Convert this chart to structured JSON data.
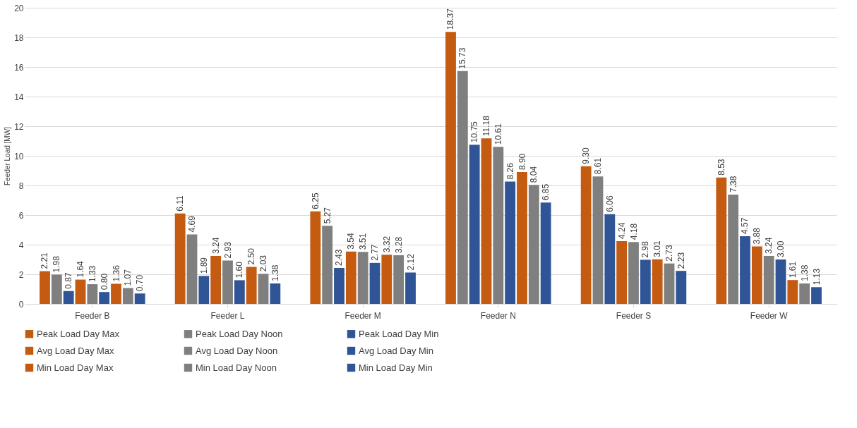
{
  "chart_data": {
    "type": "bar",
    "ylabel": "Feeder Load [MW]",
    "categories": [
      "Feeder B",
      "Feeder L",
      "Feeder M",
      "Feeder N",
      "Feeder S",
      "Feeder W"
    ],
    "series": [
      {
        "name": "Peak Load Day Max",
        "color": "#c55a11",
        "values": [
          2.21,
          6.11,
          6.25,
          18.37,
          9.3,
          8.53
        ],
        "value_labels": [
          "2.21",
          "6.11",
          "6.25",
          "18.37",
          "9.30",
          "8.53"
        ]
      },
      {
        "name": "Peak Load Day Noon",
        "color": "#7f7f7f",
        "values": [
          1.98,
          4.69,
          5.27,
          15.73,
          8.61,
          7.38
        ],
        "value_labels": [
          "1.98",
          "4.69",
          "5.27",
          "15.73",
          "8.61",
          "7.38"
        ]
      },
      {
        "name": "Peak Load Day Min",
        "color": "#2f5597",
        "values": [
          0.87,
          1.89,
          2.43,
          10.75,
          6.06,
          4.57
        ],
        "value_labels": [
          "0.87",
          "1.89",
          "2.43",
          "10.75",
          "6.06",
          "4.57"
        ]
      },
      {
        "name": "Avg Load Day Max",
        "color": "#c55a11",
        "values": [
          1.64,
          3.24,
          3.54,
          11.18,
          4.24,
          3.88
        ],
        "value_labels": [
          "1.64",
          "3.24",
          "3.54",
          "11.18",
          "4.24",
          "3.88"
        ]
      },
      {
        "name": "Avg Load Day Noon",
        "color": "#7f7f7f",
        "values": [
          1.33,
          2.93,
          3.51,
          10.61,
          4.18,
          3.24
        ],
        "value_labels": [
          "1.33",
          "2.93",
          "3.51",
          "10.61",
          "4.18",
          "3.24"
        ]
      },
      {
        "name": "Avg Load Day Min",
        "color": "#2f5597",
        "values": [
          0.8,
          1.6,
          2.77,
          8.26,
          2.98,
          3.0
        ],
        "value_labels": [
          "0.80",
          "1.60",
          "2.77",
          "8.26",
          "2.98",
          "3.00"
        ]
      },
      {
        "name": "Min Load Day Max",
        "color": "#c55a11",
        "values": [
          1.36,
          2.5,
          3.32,
          8.9,
          3.01,
          1.61
        ],
        "value_labels": [
          "1.36",
          "2.50",
          "3.32",
          "8.90",
          "3.01",
          "1.61"
        ]
      },
      {
        "name": "Min Load Day Noon",
        "color": "#7f7f7f",
        "values": [
          1.07,
          2.03,
          3.28,
          8.04,
          2.73,
          1.38
        ],
        "value_labels": [
          "1.07",
          "2.03",
          "3.28",
          "8.04",
          "2.73",
          "1.38"
        ]
      },
      {
        "name": "Min Load Day Min",
        "color": "#2f5597",
        "values": [
          0.7,
          1.38,
          2.12,
          6.85,
          2.23,
          1.13
        ],
        "value_labels": [
          "0.70",
          "1.38",
          "2.12",
          "6.85",
          "2.23",
          "1.13"
        ]
      }
    ],
    "ylim": [
      0,
      20
    ],
    "yticks": [
      0,
      2,
      4,
      6,
      8,
      10,
      12,
      14,
      16,
      18,
      20
    ],
    "grid": "y",
    "legend": "bottom"
  }
}
